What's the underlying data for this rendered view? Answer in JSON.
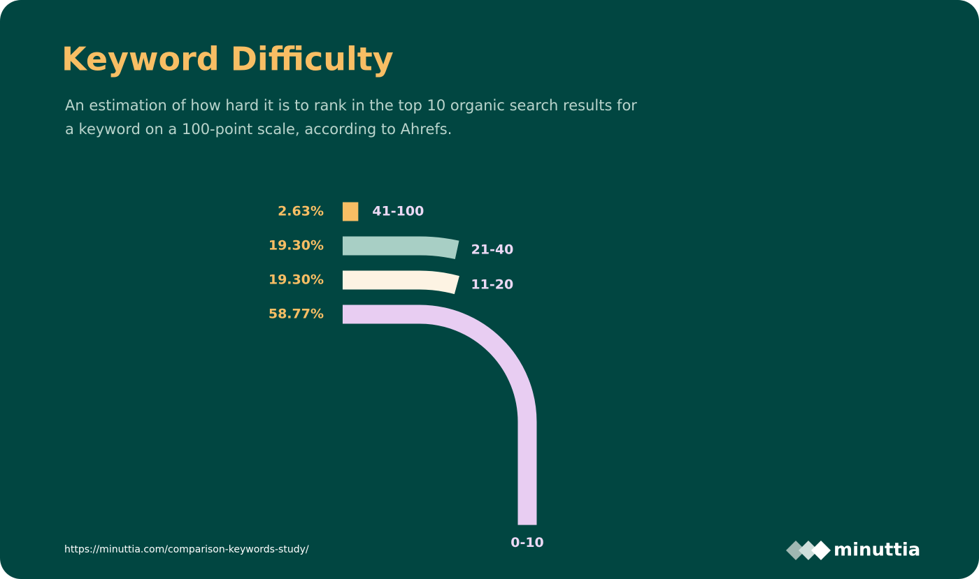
{
  "chart_data": {
    "type": "curved-bar",
    "title": "Keyword Difficulty",
    "subtitle": [
      "An estimation of how hard it is to rank in the top 10 organic search results for",
      "a keyword on a 100-point scale, according to Ahrefs."
    ],
    "categories": [
      "41-100",
      "21-40",
      "11-20",
      "0-10"
    ],
    "values": [
      2.63,
      19.3,
      19.3,
      58.77
    ],
    "value_labels": [
      "2.63%",
      "19.30%",
      "19.30%",
      "58.77%"
    ],
    "colors": [
      "#f8be64",
      "#a8cfc5",
      "#fdf3e3",
      "#e8cdf2"
    ]
  },
  "footer": {
    "source": "https://minuttia.com/comparison-keywords-study/",
    "brand": "minuttia"
  }
}
